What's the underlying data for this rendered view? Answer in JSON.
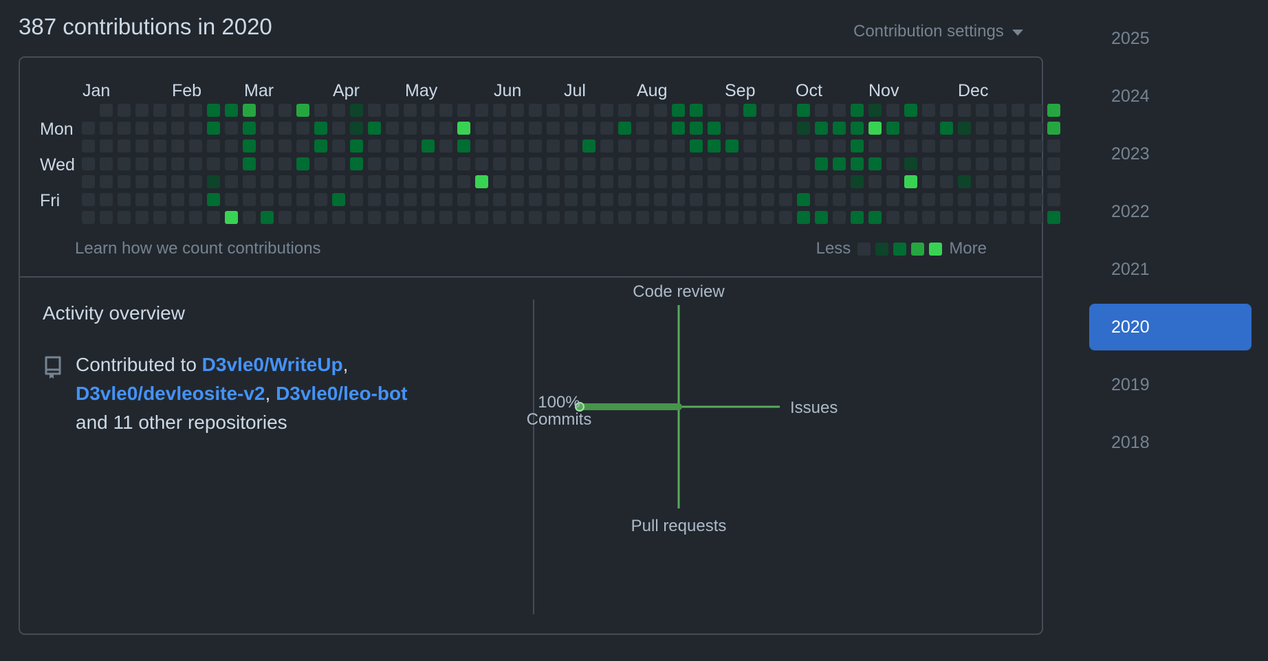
{
  "header": {
    "title": "387 contributions in 2020",
    "settings_label": "Contribution settings"
  },
  "calendar": {
    "months": [
      "Jan",
      "Feb",
      "Mar",
      "Apr",
      "May",
      "Jun",
      "Jul",
      "Aug",
      "Sep",
      "Oct",
      "Nov",
      "Dec"
    ],
    "day_labels": [
      "Mon",
      "Wed",
      "Fri"
    ],
    "colors": [
      "#2d333b",
      "#0e4429",
      "#006d32",
      "#26a641",
      "#39d353"
    ],
    "levels": [
      "0000000000000000000000000000000000000000000000000000000",
      "0000000223003001000000000000000002200200200210200000003",
      "0000000202000201200004000000002002220000122242002100003",
      "0000000002000202000202000000200000222000000200000000000",
      "0000000002002002000000000000000000000000022220100000000",
      "0000000100000000000000400000000000000000000100400100000",
      "0000000200000020000000000000000000000000200000000000000",
      "0000000040200000000000000000000000000000220220000000002"
    ],
    "learn_label": "Learn how we count contributions",
    "legend_less": "Less",
    "legend_more": "More"
  },
  "activity": {
    "title": "Activity overview",
    "prefix": "Contributed to ",
    "repos": [
      "D3vle0/WriteUp",
      "D3vle0/devleosite-v2",
      "D3vle0/leo-bot"
    ],
    "suffix": "and 11 other repositories",
    "radar": {
      "top": "Code review",
      "bottom": "Pull requests",
      "right": "Issues",
      "left_pct": "100%",
      "left_label": "Commits"
    }
  },
  "years": [
    "2025",
    "2024",
    "2023",
    "2022",
    "2021",
    "2020",
    "2019",
    "2018"
  ],
  "selected_year": "2020"
}
